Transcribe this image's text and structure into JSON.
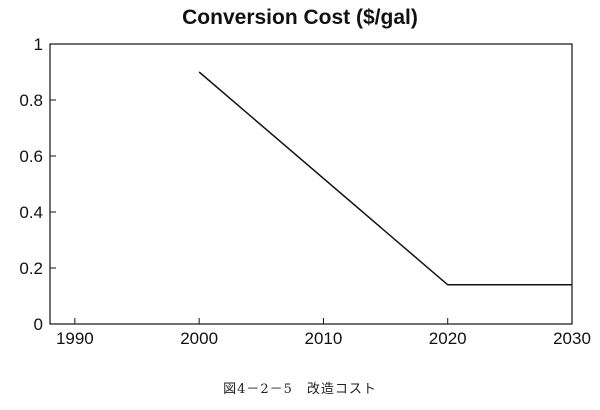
{
  "chart_data": {
    "type": "line",
    "title": "Conversion Cost ($/gal)",
    "xlabel": "",
    "ylabel": "",
    "xlim": [
      1988,
      2030
    ],
    "ylim": [
      0,
      1
    ],
    "x_ticks": [
      1990,
      2000,
      2010,
      2020,
      2030
    ],
    "y_ticks": [
      0,
      0.2,
      0.4,
      0.6,
      0.8,
      1
    ],
    "y_tick_labels": [
      "0",
      "0.2",
      "0.4",
      "0.6",
      "0.8",
      "1"
    ],
    "grid": false,
    "series": [
      {
        "name": "Conversion Cost",
        "x": [
          2000,
          2020,
          2030
        ],
        "y": [
          0.9,
          0.14,
          0.14
        ]
      }
    ],
    "colors": {
      "line": "#111111",
      "axis": "#111111"
    }
  },
  "caption": "図4－2－5　改造コスト"
}
